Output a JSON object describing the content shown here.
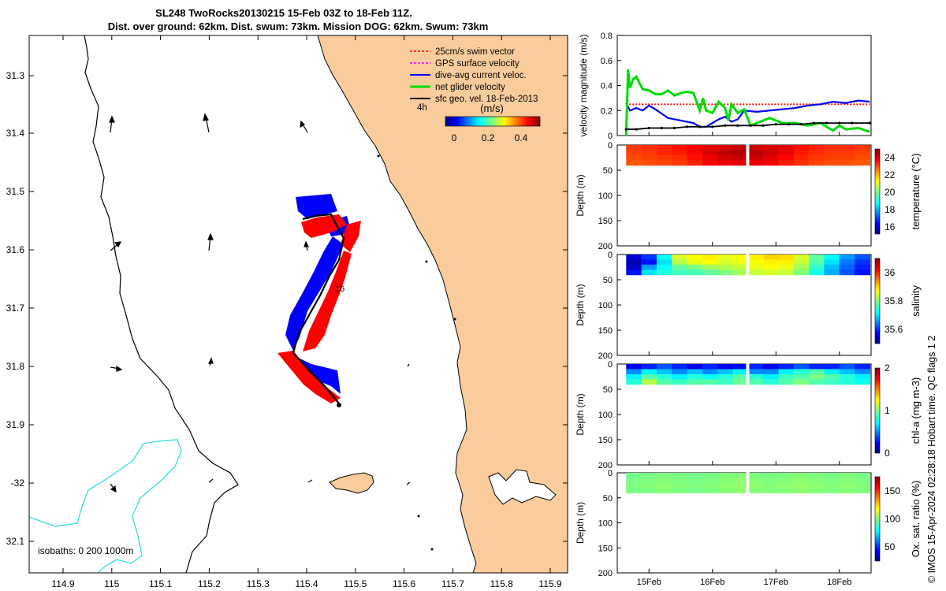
{
  "title": {
    "line1": "SL248 TwoRocks20130215 15-Feb 03Z to 18-Feb 11Z.",
    "line2": "Dist. over ground: 62km. Dist. swum: 73km. Mission DOG: 62km. Swum: 73km"
  },
  "map": {
    "lat_ticks": [
      "31.3",
      "31.4",
      "31.5",
      "31.6",
      "31.7",
      "31.8",
      "31.9",
      "-32",
      "32.1"
    ],
    "lon_ticks": [
      "114.9",
      "115",
      "115.1",
      "115.2",
      "115.3",
      "115.4",
      "115.5",
      "115.6",
      "115.7",
      "115.8",
      "115.9"
    ],
    "legend": [
      {
        "label": "25cm/s swim vector",
        "color": "#ff0000"
      },
      {
        "label": "GPS surface velocity",
        "color": "#ff00ff"
      },
      {
        "label": "dive-avg current veloc.",
        "color": "#0000ff"
      },
      {
        "label": "net glider velocity",
        "color": "#00dd00"
      },
      {
        "label": "sfc geo. vel. 18-Feb-2013",
        "color": "#000000"
      }
    ],
    "legend_note": "4h",
    "colorbar": {
      "label": "(m/s)",
      "ticks": [
        "0",
        "0.2",
        "0.4"
      ]
    },
    "track_label": "16",
    "isobaths_label": "isobaths: 0   200  1000m"
  },
  "chart_data": [
    {
      "type": "line",
      "title": "",
      "ylabel": "velocity magnitude (m/s)",
      "ylim": [
        0,
        0.8
      ],
      "yticks": [
        "0",
        "0.2",
        "0.4",
        "0.6",
        "0.8"
      ],
      "xlim": [
        0,
        4
      ],
      "xticks": [
        "15Feb",
        "16Feb",
        "17Feb",
        "18Feb"
      ],
      "series": [
        {
          "name": "swim speed",
          "color": "#ff0000",
          "x": [
            0.14,
            0.5,
            1,
            1.5,
            2,
            2.5,
            3,
            3.5,
            3.98
          ],
          "y": [
            0.25,
            0.25,
            0.25,
            0.25,
            0.25,
            0.25,
            0.25,
            0.25,
            0.25
          ]
        },
        {
          "name": "dive-avg current",
          "color": "#0000ff",
          "x": [
            0.14,
            0.2,
            0.3,
            0.4,
            0.5,
            0.6,
            0.8,
            1.0,
            1.2,
            1.3,
            1.4,
            1.5,
            1.6,
            1.7,
            1.8,
            1.9,
            2.0,
            2.2,
            2.4,
            2.6,
            2.8,
            3.0,
            3.2,
            3.4,
            3.6,
            3.8,
            3.98
          ],
          "y": [
            0.26,
            0.2,
            0.22,
            0.2,
            0.24,
            0.21,
            0.14,
            0.12,
            0.1,
            0.07,
            0.07,
            0.1,
            0.13,
            0.15,
            0.11,
            0.13,
            0.2,
            0.19,
            0.2,
            0.21,
            0.22,
            0.24,
            0.25,
            0.27,
            0.26,
            0.28,
            0.27
          ]
        },
        {
          "name": "net glider velocity",
          "color": "#00dd00",
          "x": [
            0.14,
            0.17,
            0.2,
            0.25,
            0.3,
            0.35,
            0.4,
            0.5,
            0.6,
            0.7,
            0.8,
            0.9,
            1.0,
            1.1,
            1.2,
            1.3,
            1.35,
            1.4,
            1.5,
            1.6,
            1.7,
            1.75,
            1.8,
            1.9,
            2.0,
            2.1,
            2.2,
            2.4,
            2.6,
            2.8,
            3.0,
            3.2,
            3.4,
            3.5,
            3.6,
            3.8,
            3.98
          ],
          "y": [
            0.0,
            0.53,
            0.38,
            0.45,
            0.47,
            0.42,
            0.37,
            0.36,
            0.33,
            0.33,
            0.36,
            0.32,
            0.34,
            0.35,
            0.34,
            0.2,
            0.3,
            0.2,
            0.18,
            0.27,
            0.22,
            0.12,
            0.25,
            0.18,
            0.21,
            0.08,
            0.1,
            0.14,
            0.1,
            0.1,
            0.08,
            0.1,
            0.04,
            0.08,
            0.05,
            0.06,
            0.03
          ]
        },
        {
          "name": "sfc geo. vel.",
          "color": "#000000",
          "x": [
            0.14,
            0.3,
            0.5,
            0.7,
            0.9,
            1.1,
            1.3,
            1.5,
            1.7,
            1.9,
            2.1,
            2.3,
            2.5,
            2.7,
            2.9,
            3.1,
            3.3,
            3.5,
            3.7,
            3.98
          ],
          "y": [
            0.05,
            0.05,
            0.06,
            0.06,
            0.06,
            0.07,
            0.07,
            0.07,
            0.08,
            0.08,
            0.08,
            0.08,
            0.09,
            0.09,
            0.09,
            0.1,
            0.1,
            0.1,
            0.1,
            0.1
          ]
        }
      ]
    },
    {
      "type": "heatmap",
      "ylabel": "Depth (m)",
      "ylim": [
        200,
        0
      ],
      "yticks": [
        "0",
        "50",
        "100",
        "150",
        "200"
      ],
      "xlim": [
        0,
        4
      ],
      "data_x": [
        0.14,
        3.98
      ],
      "data_depth": [
        0,
        40
      ],
      "gap_x": [
        2.03,
        2.08
      ],
      "colorbar_label": "temperature (°C)",
      "colorbar_ticks": [
        "16",
        "18",
        "20",
        "22",
        "24"
      ],
      "colorbar_range": [
        15.2,
        25.0
      ],
      "cells": [
        [
          23.2,
          23.3,
          23.4,
          23.6,
          23.8,
          24.0,
          24.1,
          24.3,
          24.2,
          24.1,
          24.0,
          23.6,
          23.4,
          23.3,
          23.3,
          23.2
        ],
        [
          23.1,
          23.2,
          23.4,
          23.5,
          23.7,
          24.1,
          24.4,
          24.5,
          24.4,
          24.2,
          23.9,
          23.5,
          23.3,
          23.2,
          23.2,
          23.1
        ],
        [
          23.0,
          23.1,
          23.2,
          23.3,
          23.6,
          23.9,
          24.2,
          24.3,
          24.2,
          24.0,
          23.7,
          23.4,
          23.2,
          23.1,
          23.1,
          23.0
        ],
        [
          22.9,
          23.0,
          23.1,
          23.2,
          23.4,
          23.7,
          23.9,
          24.0,
          23.9,
          23.8,
          23.5,
          23.3,
          23.1,
          23.0,
          23.0,
          22.9
        ]
      ]
    },
    {
      "type": "heatmap",
      "ylabel": "Depth (m)",
      "ylim": [
        200,
        0
      ],
      "yticks": [
        "0",
        "50",
        "100",
        "150",
        "200"
      ],
      "xlim": [
        0,
        4
      ],
      "data_x": [
        0.14,
        3.98
      ],
      "data_depth": [
        0,
        40
      ],
      "gap_x": [
        2.03,
        2.08
      ],
      "colorbar_label": "salinity",
      "colorbar_ticks": [
        "35.6",
        "35.8",
        "36"
      ],
      "colorbar_range": [
        35.5,
        36.1
      ],
      "cells": [
        [
          35.55,
          35.6,
          35.72,
          35.85,
          35.87,
          35.88,
          35.86,
          35.87,
          35.88,
          35.9,
          35.89,
          35.85,
          35.78,
          35.72,
          35.66,
          35.62
        ],
        [
          35.53,
          35.58,
          35.7,
          35.83,
          35.86,
          35.87,
          35.85,
          35.86,
          35.87,
          35.88,
          35.88,
          35.84,
          35.77,
          35.7,
          35.64,
          35.6
        ],
        [
          35.54,
          35.66,
          35.72,
          35.78,
          35.8,
          35.82,
          35.83,
          35.84,
          35.86,
          35.87,
          35.86,
          35.82,
          35.75,
          35.68,
          35.63,
          35.59
        ],
        [
          35.58,
          35.7,
          35.74,
          35.76,
          35.76,
          35.78,
          35.8,
          35.82,
          35.84,
          35.85,
          35.84,
          35.8,
          35.73,
          35.67,
          35.62,
          35.58
        ]
      ]
    },
    {
      "type": "heatmap",
      "ylabel": "Depth (m)",
      "ylim": [
        200,
        0
      ],
      "yticks": [
        "0",
        "50",
        "100",
        "150",
        "200"
      ],
      "xlim": [
        0,
        4
      ],
      "data_x": [
        0.14,
        3.98
      ],
      "data_depth": [
        0,
        40
      ],
      "gap_x": [
        2.03,
        2.08
      ],
      "colorbar_label": "chl-a (mg m-3)",
      "colorbar_ticks": [
        "0",
        "1",
        "2"
      ],
      "colorbar_range": [
        0,
        2
      ],
      "cells": [
        [
          0.2,
          0.3,
          0.4,
          0.3,
          0.2,
          0.3,
          0.2,
          0.25,
          0.3,
          0.2,
          0.3,
          0.4,
          0.3,
          0.3,
          0.4,
          0.3
        ],
        [
          0.5,
          0.7,
          0.6,
          0.5,
          0.6,
          0.5,
          0.6,
          0.7,
          0.5,
          0.5,
          0.7,
          0.8,
          0.9,
          0.7,
          0.6,
          0.5
        ],
        [
          0.7,
          0.9,
          0.8,
          0.7,
          0.8,
          0.75,
          0.8,
          0.9,
          0.8,
          0.7,
          0.85,
          0.9,
          1.0,
          0.9,
          0.8,
          0.7
        ],
        [
          0.8,
          1.1,
          0.9,
          0.85,
          0.9,
          0.9,
          0.85,
          0.95,
          0.9,
          0.8,
          0.9,
          1.0,
          0.9,
          0.85,
          0.8,
          0.75
        ]
      ]
    },
    {
      "type": "heatmap",
      "ylabel": "Depth (m)",
      "ylim": [
        200,
        0
      ],
      "yticks": [
        "0",
        "50",
        "100",
        "150",
        "200"
      ],
      "xlim": [
        0,
        4
      ],
      "data_x": [
        0.14,
        3.98
      ],
      "data_depth": [
        0,
        40
      ],
      "gap_x": [
        2.03,
        2.08
      ],
      "colorbar_label": "Ox. sat. ratio (%)",
      "colorbar_ticks": [
        "50",
        "100",
        "150"
      ],
      "colorbar_range": [
        25,
        175
      ],
      "cells": [
        [
          98,
          99,
          100,
          99,
          98,
          99,
          100,
          101,
          100,
          99,
          100,
          101,
          100,
          99,
          100,
          99
        ],
        [
          99,
          100,
          101,
          100,
          99,
          100,
          101,
          102,
          101,
          100,
          101,
          102,
          101,
          100,
          101,
          100
        ],
        [
          100,
          101,
          102,
          101,
          100,
          101,
          102,
          103,
          102,
          101,
          102,
          103,
          102,
          101,
          102,
          101
        ],
        [
          99,
          100,
          101,
          100,
          99,
          100,
          101,
          102,
          101,
          100,
          101,
          102,
          101,
          100,
          101,
          100
        ]
      ]
    }
  ],
  "footer": "© IMOS 15-Apr-2024 02:28:18 Hobart time. QC flags 1  2"
}
